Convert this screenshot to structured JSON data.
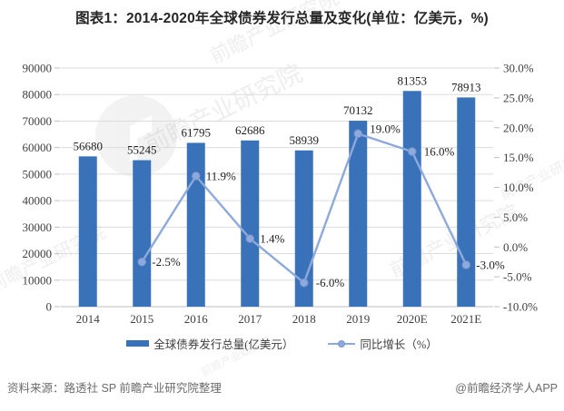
{
  "title": "图表1：2014-2020年全球债券发行总量及变化(单位：亿美元，%)",
  "watermark": {
    "text": "前瞻产业研究院",
    "logo": "qianzhan-logo"
  },
  "footer": {
    "source": "资料来源：路透社 SP 前瞻产业研究院整理",
    "brand": "@前瞻经济学人APP"
  },
  "colors": {
    "bar": "#3A72B9",
    "line": "#8EA9DB",
    "marker_stroke": "#7C97CE",
    "grid": "#DCDCDC",
    "axis_line": "#BFBFBF",
    "axis_text": "#404040",
    "value_label_text": "#1F1F1F",
    "title_text": "#262626",
    "footer_text": "#6B6B6B"
  },
  "chart_data": {
    "type": "combo bar+line",
    "title": "图表1：2014-2020年全球债券发行总量及变化(单位：亿美元，%)",
    "categories": [
      "2014",
      "2015",
      "2016",
      "2017",
      "2018",
      "2019",
      "2020E",
      "2021E"
    ],
    "series": [
      {
        "name": "全球债券发行总量(亿美元）",
        "type": "bar",
        "axis": "left",
        "values": [
          56680,
          55245,
          61795,
          62686,
          58939,
          70132,
          81353,
          78913
        ],
        "labels": [
          "56680",
          "55245",
          "61795",
          "62686",
          "58939",
          "70132",
          "81353",
          "78913"
        ]
      },
      {
        "name": "同比增长（%）",
        "type": "line",
        "axis": "right",
        "values": [
          null,
          -2.5,
          11.9,
          1.4,
          -6.0,
          19.0,
          16.0,
          -3.0
        ],
        "labels": [
          "",
          "-2.5%",
          "11.9%",
          "1.4%",
          "-6.0%",
          "19.0%",
          "16.0%",
          "-3.0%"
        ]
      }
    ],
    "left_axis": {
      "min": 0,
      "max": 90000,
      "step": 10000,
      "tick_labels": [
        "0",
        "10000",
        "20000",
        "30000",
        "40000",
        "50000",
        "60000",
        "70000",
        "80000",
        "90000"
      ]
    },
    "right_axis": {
      "min": -10,
      "max": 30,
      "step": 5,
      "tick_labels": [
        "-10.0%",
        "-5.0%",
        "0.0%",
        "5.0%",
        "10.0%",
        "15.0%",
        "20.0%",
        "25.0%",
        "30.0%"
      ]
    },
    "grid": true,
    "legend_position": "bottom"
  }
}
